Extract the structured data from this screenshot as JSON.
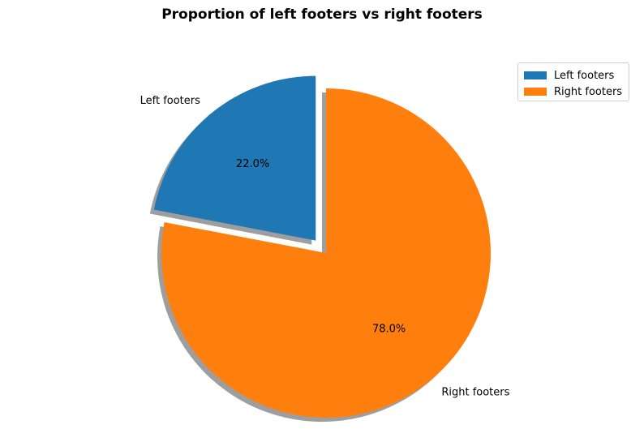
{
  "chart_data": {
    "type": "pie",
    "title": "Proportion of left footers vs right footers",
    "categories": [
      "Left footers",
      "Right footers"
    ],
    "values": [
      22.0,
      78.0
    ],
    "percent_labels": [
      "22.0%",
      "78.0%"
    ],
    "colors": [
      "#1f77b4",
      "#ff7f0e"
    ],
    "exploded": [
      true,
      false
    ],
    "shadow": true,
    "start_angle_deg": 90,
    "legend": {
      "position": "top-right",
      "entries": [
        "Left footers",
        "Right footers"
      ]
    }
  }
}
